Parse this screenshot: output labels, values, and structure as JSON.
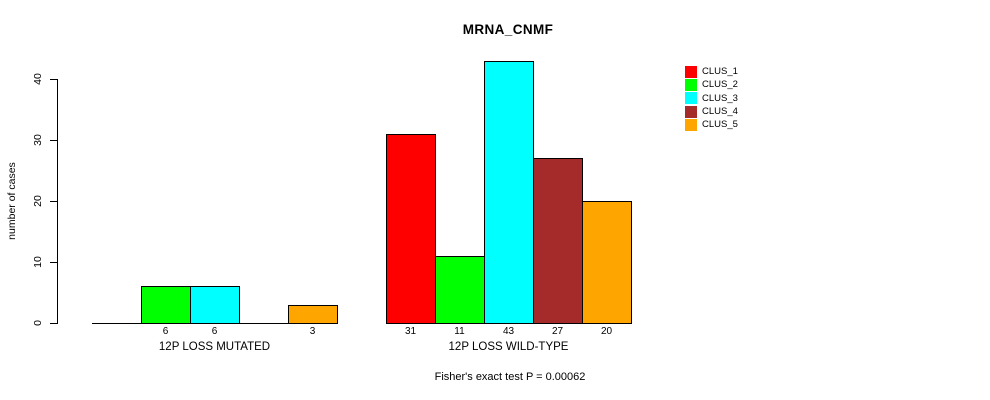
{
  "title": "MRNA_CNMF",
  "chart_data": {
    "type": "bar",
    "grouped": true,
    "categories": [
      "12P LOSS MUTATED",
      "12P LOSS WILD-TYPE"
    ],
    "series": [
      {
        "name": "CLUS_1",
        "color": "#FF0000",
        "values": [
          0,
          31
        ]
      },
      {
        "name": "CLUS_2",
        "color": "#00FF00",
        "values": [
          6,
          11
        ]
      },
      {
        "name": "CLUS_3",
        "color": "#00FFFF",
        "values": [
          6,
          43
        ]
      },
      {
        "name": "CLUS_4",
        "color": "#A52A2A",
        "values": [
          0,
          27
        ]
      },
      {
        "name": "CLUS_5",
        "color": "#FFA500",
        "values": [
          3,
          20
        ]
      }
    ],
    "xlabel": "",
    "ylabel": "number of cases",
    "yticks": [
      0,
      10,
      20,
      30,
      40
    ],
    "ylim": [
      0,
      43
    ],
    "grid": false,
    "legend_position": "top-right",
    "value_labels": "shown under each nonzero bar",
    "annotation": "Fisher's exact test P = 0.00062"
  }
}
